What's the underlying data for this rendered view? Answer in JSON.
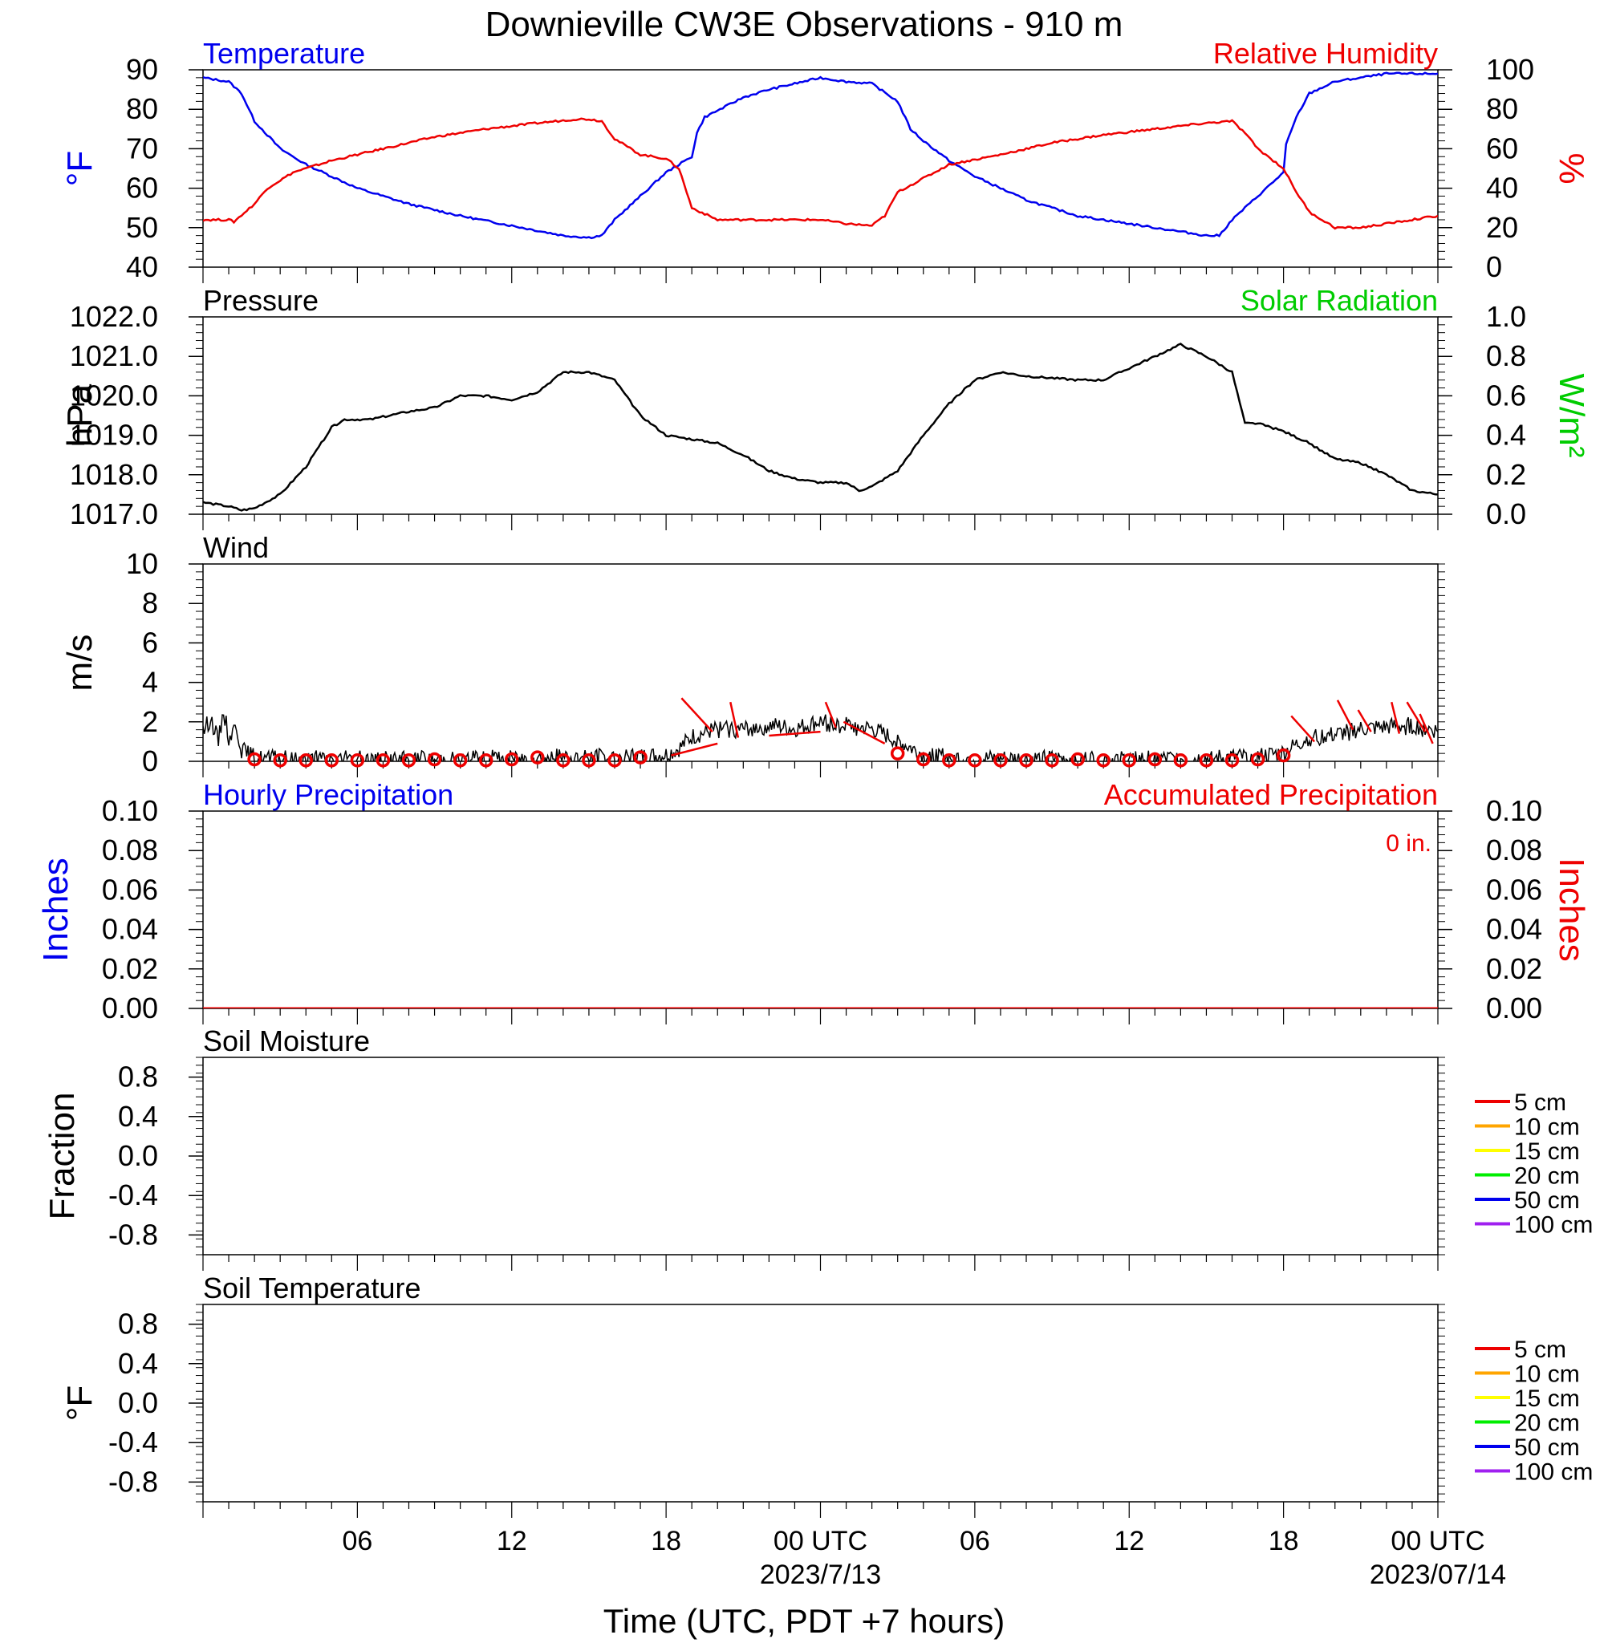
{
  "title": "Downieville CW3E Observations - 910 m",
  "xlabel": "Time (UTC, PDT +7 hours)",
  "time_axis": {
    "start_hour": 0,
    "end_hour": 48,
    "ticks": [
      {
        "hour": 6,
        "label": "06"
      },
      {
        "hour": 12,
        "label": "12"
      },
      {
        "hour": 18,
        "label": "18"
      },
      {
        "hour": 24,
        "label": "00 UTC",
        "date": "2023/7/13"
      },
      {
        "hour": 30,
        "label": "06"
      },
      {
        "hour": 36,
        "label": "12"
      },
      {
        "hour": 42,
        "label": "18"
      },
      {
        "hour": 48,
        "label": "00 UTC",
        "date": "2023/07/14"
      }
    ]
  },
  "colors": {
    "temperature": "#0000ee",
    "humidity": "#ee0000",
    "pressure": "#000000",
    "solar": "#00cc00",
    "wind": "#000000",
    "wind_barb": "#ee0000",
    "hourly_precip": "#0000ee",
    "accum_precip": "#ee0000"
  },
  "chart_data": [
    {
      "type": "line",
      "panel": "temperature-humidity",
      "left_title": "Temperature",
      "right_title": "Relative Humidity",
      "ylabel_left": "°F",
      "ylabel_right": "%",
      "ylim_left": [
        40,
        90
      ],
      "yticks_left": [
        "40",
        "50",
        "60",
        "70",
        "80",
        "90"
      ],
      "ylim_right": [
        0,
        100
      ],
      "yticks_right": [
        "0",
        "20",
        "40",
        "60",
        "80",
        "100"
      ],
      "series": [
        {
          "name": "Temperature",
          "axis": "left",
          "points": [
            [
              0,
              88
            ],
            [
              1,
              87
            ],
            [
              1.5,
              84
            ],
            [
              2,
              77
            ],
            [
              3,
              70
            ],
            [
              4,
              66
            ],
            [
              5,
              63
            ],
            [
              6,
              60
            ],
            [
              8,
              56
            ],
            [
              10,
              53
            ],
            [
              12,
              50.5
            ],
            [
              14,
              48
            ],
            [
              15,
              47.5
            ],
            [
              15.5,
              48
            ],
            [
              16,
              52
            ],
            [
              17,
              58
            ],
            [
              18,
              64
            ],
            [
              19,
              68
            ],
            [
              19.2,
              74
            ],
            [
              19.5,
              78
            ],
            [
              21,
              83
            ],
            [
              22,
              85
            ],
            [
              24,
              88
            ],
            [
              25,
              87
            ],
            [
              26,
              86.5
            ],
            [
              27,
              82
            ],
            [
              27.5,
              75
            ],
            [
              28,
              72
            ],
            [
              29,
              67
            ],
            [
              30,
              63
            ],
            [
              32,
              57
            ],
            [
              34,
              53
            ],
            [
              36,
              51
            ],
            [
              38,
              49
            ],
            [
              39,
              48
            ],
            [
              39.5,
              48
            ],
            [
              40,
              52
            ],
            [
              41,
              58
            ],
            [
              42,
              64
            ],
            [
              42.1,
              71
            ],
            [
              42.5,
              78
            ],
            [
              43,
              84
            ],
            [
              44,
              87
            ],
            [
              46,
              89
            ],
            [
              47,
              89
            ],
            [
              48,
              89
            ]
          ]
        },
        {
          "name": "Relative Humidity",
          "axis": "right",
          "points": [
            [
              0,
              24
            ],
            [
              1,
              24
            ],
            [
              1.2,
              23
            ],
            [
              2,
              32
            ],
            [
              2.5,
              40
            ],
            [
              3.5,
              48
            ],
            [
              5,
              54
            ],
            [
              7,
              60
            ],
            [
              9,
              66
            ],
            [
              11,
              70
            ],
            [
              13,
              73
            ],
            [
              14.5,
              75
            ],
            [
              15,
              75
            ],
            [
              15.5,
              74
            ],
            [
              16,
              65
            ],
            [
              17,
              57
            ],
            [
              18,
              55
            ],
            [
              18.5,
              50
            ],
            [
              19,
              30
            ],
            [
              20,
              24
            ],
            [
              22,
              24
            ],
            [
              24,
              24
            ],
            [
              25,
              22
            ],
            [
              26,
              21
            ],
            [
              26.5,
              26
            ],
            [
              27,
              38
            ],
            [
              28,
              45
            ],
            [
              29,
              52
            ],
            [
              31,
              57
            ],
            [
              33,
              63
            ],
            [
              35,
              67
            ],
            [
              37,
              70
            ],
            [
              39,
              73
            ],
            [
              40,
              74
            ],
            [
              40.5,
              68
            ],
            [
              41,
              60
            ],
            [
              42,
              50
            ],
            [
              42.5,
              38
            ],
            [
              43,
              28
            ],
            [
              44,
              20
            ],
            [
              45,
              20
            ],
            [
              46,
              22
            ],
            [
              48,
              26
            ]
          ]
        }
      ]
    },
    {
      "type": "line",
      "panel": "pressure-solar",
      "left_title": "Pressure",
      "right_title": "Solar Radiation",
      "ylabel_left": "hPa",
      "ylabel_right": "W/m²",
      "ylim_left": [
        1017.0,
        1022.0
      ],
      "yticks_left": [
        "1017.0",
        "1018.0",
        "1019.0",
        "1020.0",
        "1021.0",
        "1022.0"
      ],
      "ylim_right": [
        0.0,
        1.0
      ],
      "yticks_right": [
        "0.0",
        "0.2",
        "0.4",
        "0.6",
        "0.8",
        "1.0"
      ],
      "series": [
        {
          "name": "Pressure",
          "axis": "left",
          "points": [
            [
              0,
              1017.3
            ],
            [
              1,
              1017.2
            ],
            [
              1.5,
              1017.1
            ],
            [
              2,
              1017.15
            ],
            [
              3,
              1017.5
            ],
            [
              4,
              1018.2
            ],
            [
              5,
              1019.2
            ],
            [
              5.5,
              1019.4
            ],
            [
              6.5,
              1019.4
            ],
            [
              8,
              1019.6
            ],
            [
              9,
              1019.7
            ],
            [
              10,
              1020.0
            ],
            [
              11,
              1020.0
            ],
            [
              12,
              1019.9
            ],
            [
              13,
              1020.1
            ],
            [
              14,
              1020.6
            ],
            [
              15,
              1020.6
            ],
            [
              16,
              1020.4
            ],
            [
              17,
              1019.5
            ],
            [
              18,
              1019.0
            ],
            [
              19,
              1018.9
            ],
            [
              20,
              1018.8
            ],
            [
              21,
              1018.5
            ],
            [
              22,
              1018.1
            ],
            [
              23,
              1017.9
            ],
            [
              24,
              1017.8
            ],
            [
              25,
              1017.8
            ],
            [
              25.5,
              1017.6
            ],
            [
              26,
              1017.7
            ],
            [
              27,
              1018.1
            ],
            [
              28,
              1019.0
            ],
            [
              29,
              1019.8
            ],
            [
              30,
              1020.4
            ],
            [
              31,
              1020.6
            ],
            [
              32,
              1020.5
            ],
            [
              34,
              1020.4
            ],
            [
              35,
              1020.4
            ],
            [
              36,
              1020.7
            ],
            [
              37,
              1021.0
            ],
            [
              38,
              1021.3
            ],
            [
              39,
              1021.0
            ],
            [
              40,
              1020.6
            ],
            [
              40.5,
              1019.3
            ],
            [
              41,
              1019.3
            ],
            [
              42,
              1019.1
            ],
            [
              43,
              1018.8
            ],
            [
              44,
              1018.4
            ],
            [
              45,
              1018.3
            ],
            [
              46,
              1018.0
            ],
            [
              47,
              1017.6
            ],
            [
              48,
              1017.5
            ]
          ]
        }
      ]
    },
    {
      "type": "line",
      "panel": "wind",
      "left_title": "Wind",
      "ylabel_left": "m/s",
      "ylim_left": [
        0,
        10
      ],
      "yticks_left": [
        "0",
        "2",
        "4",
        "6",
        "8",
        "10"
      ],
      "series": [
        {
          "name": "Wind speed",
          "axis": "left",
          "points": [
            [
              0,
              1.5
            ],
            [
              0.3,
              2.2
            ],
            [
              0.6,
              1.0
            ],
            [
              0.8,
              2.6
            ],
            [
              1.0,
              1.2
            ],
            [
              1.3,
              1.8
            ],
            [
              1.5,
              0.6
            ],
            [
              2,
              0.2
            ],
            [
              3,
              0.1
            ],
            [
              6,
              0.1
            ],
            [
              10,
              0.1
            ],
            [
              14,
              0.2
            ],
            [
              17,
              0.2
            ],
            [
              18,
              0.3
            ],
            [
              18.5,
              0.6
            ],
            [
              19,
              1.2
            ],
            [
              20,
              1.6
            ],
            [
              21,
              1.6
            ],
            [
              22,
              1.8
            ],
            [
              23,
              1.6
            ],
            [
              24,
              2.0
            ],
            [
              25,
              1.8
            ],
            [
              26,
              1.6
            ],
            [
              27,
              1.0
            ],
            [
              28,
              0.3
            ],
            [
              30,
              0.1
            ],
            [
              34,
              0.1
            ],
            [
              38,
              0.1
            ],
            [
              41,
              0.2
            ],
            [
              42,
              0.4
            ],
            [
              43,
              1.2
            ],
            [
              44,
              1.3
            ],
            [
              45,
              1.6
            ],
            [
              46,
              1.7
            ],
            [
              47,
              1.8
            ],
            [
              48,
              1.5
            ]
          ]
        }
      ],
      "barb_points": [
        [
          2,
          0.1
        ],
        [
          3,
          0.05
        ],
        [
          4,
          0.05
        ],
        [
          5,
          0.05
        ],
        [
          6,
          0.05
        ],
        [
          7,
          0.05
        ],
        [
          8,
          0.05
        ],
        [
          9,
          0.1
        ],
        [
          10,
          0.05
        ],
        [
          11,
          0.05
        ],
        [
          12,
          0.1
        ],
        [
          13,
          0.2
        ],
        [
          14,
          0.05
        ],
        [
          15,
          0.05
        ],
        [
          16,
          0.05
        ],
        [
          17,
          0.2
        ],
        [
          27,
          0.4
        ],
        [
          28,
          0.1
        ],
        [
          29,
          0.05
        ],
        [
          30,
          0.05
        ],
        [
          31,
          0.05
        ],
        [
          32,
          0.05
        ],
        [
          33,
          0.05
        ],
        [
          34,
          0.1
        ],
        [
          35,
          0.05
        ],
        [
          36,
          0.05
        ],
        [
          37,
          0.1
        ],
        [
          38,
          0.05
        ],
        [
          39,
          0.05
        ],
        [
          40,
          0.05
        ],
        [
          41,
          0.1
        ],
        [
          42,
          0.3
        ]
      ]
    },
    {
      "type": "line",
      "panel": "precipitation",
      "left_title": "Hourly Precipitation",
      "right_title": "Accumulated Precipitation",
      "annotation": "0 in.",
      "ylabel_left": "Inches",
      "ylabel_right": "Inches",
      "ylim_left": [
        0.0,
        0.1
      ],
      "yticks_left": [
        "0.00",
        "0.02",
        "0.04",
        "0.06",
        "0.08",
        "0.10"
      ],
      "ylim_right": [
        0.0,
        0.1
      ],
      "yticks_right": [
        "0.00",
        "0.02",
        "0.04",
        "0.06",
        "0.08",
        "0.10"
      ],
      "series": [
        {
          "name": "Accumulated Precipitation",
          "axis": "left",
          "points": [
            [
              0,
              0
            ],
            [
              48,
              0
            ]
          ]
        }
      ]
    },
    {
      "type": "line",
      "panel": "soil-moisture",
      "left_title": "Soil Moisture",
      "ylabel_left": "Fraction",
      "ylim_left": [
        -1.0,
        1.0
      ],
      "yticks_left": [
        "-0.8",
        "-0.4",
        "0.0",
        "0.4",
        "0.8"
      ],
      "legend": [
        {
          "label": "5 cm",
          "color": "#ee0000"
        },
        {
          "label": "10 cm",
          "color": "#ffa500"
        },
        {
          "label": "15 cm",
          "color": "#ffff00"
        },
        {
          "label": "20 cm",
          "color": "#00ee00"
        },
        {
          "label": "50 cm",
          "color": "#0000ee"
        },
        {
          "label": "100 cm",
          "color": "#a020f0"
        }
      ]
    },
    {
      "type": "line",
      "panel": "soil-temperature",
      "left_title": "Soil Temperature",
      "ylabel_left": "°F",
      "ylim_left": [
        -1.0,
        1.0
      ],
      "yticks_left": [
        "-0.8",
        "-0.4",
        "0.0",
        "0.4",
        "0.8"
      ],
      "legend": [
        {
          "label": "5 cm",
          "color": "#ee0000"
        },
        {
          "label": "10 cm",
          "color": "#ffa500"
        },
        {
          "label": "15 cm",
          "color": "#ffff00"
        },
        {
          "label": "20 cm",
          "color": "#00ee00"
        },
        {
          "label": "50 cm",
          "color": "#0000ee"
        },
        {
          "label": "100 cm",
          "color": "#a020f0"
        }
      ]
    }
  ]
}
